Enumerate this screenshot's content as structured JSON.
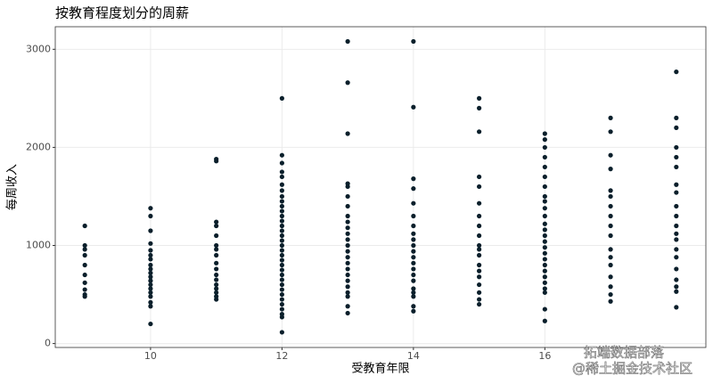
{
  "chart_data": {
    "type": "scatter",
    "title": "按教育程度划分的周薪",
    "x_label": "受教育年限",
    "y_label": "每周收入",
    "watermarks": [
      "拓端数据部落",
      "@稀土掘金技术社区"
    ],
    "color": "#0a1f2b",
    "grid": true,
    "xlim": [
      8.55,
      18.45
    ],
    "xticks": [
      10,
      12,
      14,
      16
    ],
    "ylim": [
      -40,
      3230
    ],
    "yticks": [
      0,
      1000,
      2000,
      3000
    ],
    "x": [
      9,
      9,
      9,
      9,
      9,
      9,
      9,
      9,
      9,
      9,
      10,
      10,
      10,
      10,
      10,
      10,
      10,
      10,
      10,
      10,
      10,
      10,
      10,
      10,
      10,
      10,
      10,
      10,
      10,
      11,
      11,
      11,
      11,
      11,
      11,
      11,
      11,
      11,
      11,
      11,
      11,
      11,
      11,
      11,
      11,
      11,
      12,
      12,
      12,
      12,
      12,
      12,
      12,
      12,
      12,
      12,
      12,
      12,
      12,
      12,
      12,
      12,
      12,
      12,
      12,
      12,
      12,
      12,
      12,
      12,
      12,
      12,
      12,
      12,
      12,
      12,
      12,
      12,
      12,
      12,
      13,
      13,
      13,
      13,
      13,
      13,
      13,
      13,
      13,
      13,
      13,
      13,
      13,
      13,
      13,
      13,
      13,
      13,
      13,
      13,
      13,
      13,
      13,
      13,
      14,
      14,
      14,
      14,
      14,
      14,
      14,
      14,
      14,
      14,
      14,
      14,
      14,
      14,
      14,
      14,
      14,
      14,
      14,
      14,
      14,
      15,
      15,
      15,
      15,
      15,
      15,
      15,
      15,
      15,
      15,
      15,
      15,
      15,
      15,
      15,
      15,
      15,
      15,
      15,
      16,
      16,
      16,
      16,
      16,
      16,
      16,
      16,
      16,
      16,
      16,
      16,
      16,
      16,
      16,
      16,
      16,
      16,
      16,
      16,
      16,
      16,
      16,
      16,
      16,
      16,
      17,
      17,
      17,
      17,
      17,
      17,
      17,
      17,
      17,
      17,
      17,
      17,
      17,
      17,
      17,
      17,
      17,
      18,
      18,
      18,
      18,
      18,
      18,
      18,
      18,
      18,
      18,
      18,
      18,
      18,
      18,
      18,
      18,
      18,
      18,
      18,
      18
    ],
    "values": [
      480,
      500,
      550,
      620,
      700,
      800,
      900,
      960,
      1000,
      1200,
      200,
      380,
      420,
      480,
      520,
      560,
      600,
      640,
      680,
      720,
      760,
      800,
      860,
      900,
      950,
      1020,
      1150,
      1300,
      1380,
      450,
      480,
      520,
      560,
      600,
      650,
      700,
      760,
      820,
      900,
      960,
      1000,
      1100,
      1200,
      1240,
      1860,
      1880,
      115,
      270,
      300,
      350,
      400,
      450,
      500,
      550,
      600,
      650,
      700,
      750,
      800,
      850,
      900,
      950,
      1000,
      1050,
      1100,
      1150,
      1200,
      1250,
      1300,
      1350,
      1400,
      1450,
      1500,
      1560,
      1620,
      1700,
      1750,
      1840,
      1920,
      2500,
      310,
      380,
      480,
      520,
      580,
      640,
      700,
      760,
      820,
      880,
      940,
      1000,
      1060,
      1120,
      1180,
      1240,
      1300,
      1400,
      1500,
      1600,
      1630,
      2140,
      2660,
      3080,
      330,
      380,
      480,
      520,
      560,
      640,
      700,
      760,
      820,
      880,
      940,
      1000,
      1060,
      1120,
      1200,
      1300,
      1430,
      1580,
      1680,
      2410,
      3080,
      400,
      450,
      520,
      600,
      680,
      740,
      800,
      900,
      960,
      1000,
      1100,
      1200,
      1300,
      1430,
      1600,
      1700,
      2160,
      2400,
      2500,
      230,
      350,
      520,
      560,
      620,
      680,
      740,
      800,
      860,
      920,
      980,
      1040,
      1100,
      1160,
      1220,
      1300,
      1380,
      1450,
      1500,
      1600,
      1700,
      1800,
      1900,
      2000,
      2080,
      2140,
      430,
      500,
      580,
      680,
      800,
      880,
      960,
      1100,
      1200,
      1300,
      1400,
      1500,
      1560,
      1780,
      1920,
      2160,
      2300,
      370,
      530,
      580,
      650,
      760,
      880,
      960,
      1060,
      1120,
      1200,
      1300,
      1400,
      1540,
      1620,
      1800,
      1900,
      2000,
      2200,
      2300,
      2770
    ]
  }
}
